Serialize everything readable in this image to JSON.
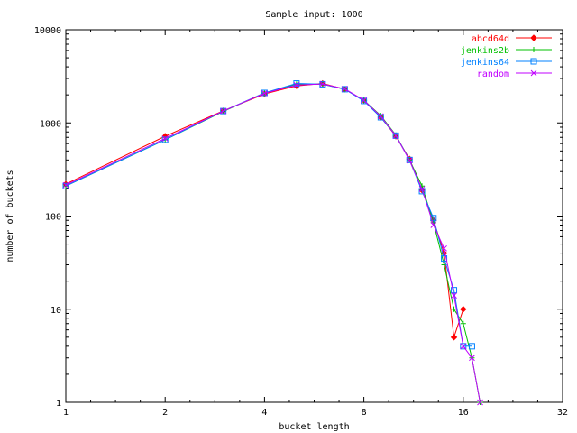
{
  "chart_data": {
    "type": "line",
    "title": "Sample input: 1000",
    "xlabel": "bucket length",
    "ylabel": "number of buckets",
    "xscale": "log2",
    "yscale": "log10",
    "xlim": [
      1,
      32
    ],
    "ylim": [
      1,
      10000
    ],
    "xticks": [
      1,
      2,
      4,
      8,
      16,
      32
    ],
    "xtick_labels": [
      "1",
      "2",
      "4",
      "8",
      "16",
      "32"
    ],
    "yticks": [
      1,
      10,
      100,
      1000,
      10000
    ],
    "ytick_labels": [
      "1",
      "10",
      "100",
      "1000",
      "10000"
    ],
    "grid": false,
    "legend_position": "top-right",
    "series": [
      {
        "name": "abcd64d",
        "color": "#ff0000",
        "marker": "diamond",
        "x": [
          1,
          2,
          3,
          4,
          5,
          6,
          7,
          8,
          9,
          10,
          11,
          12,
          13,
          14,
          15,
          16
        ],
        "y": [
          220,
          720,
          1350,
          2050,
          2500,
          2650,
          2300,
          1750,
          1150,
          720,
          410,
          190,
          90,
          40,
          5,
          10
        ]
      },
      {
        "name": "jenkins2b",
        "color": "#00c000",
        "marker": "plus",
        "x": [
          1,
          2,
          3,
          4,
          5,
          6,
          7,
          8,
          9,
          10,
          11,
          12,
          13,
          14,
          15,
          16,
          17,
          18
        ],
        "y": [
          210,
          660,
          1330,
          2100,
          2600,
          2600,
          2300,
          1750,
          1200,
          740,
          400,
          210,
          85,
          30,
          10,
          7,
          3,
          1
        ]
      },
      {
        "name": "jenkins64",
        "color": "#0080ff",
        "marker": "square",
        "x": [
          1,
          2,
          3,
          4,
          5,
          6,
          7,
          8,
          9,
          10,
          11,
          12,
          13,
          14,
          15,
          16,
          17
        ],
        "y": [
          210,
          660,
          1340,
          2100,
          2650,
          2600,
          2300,
          1720,
          1150,
          730,
          400,
          185,
          95,
          35,
          16,
          4,
          4
        ]
      },
      {
        "name": "random",
        "color": "#c000ff",
        "marker": "cross",
        "x": [
          1,
          2,
          3,
          4,
          5,
          6,
          7,
          8,
          9,
          10,
          11,
          12,
          13,
          14,
          15,
          16,
          17,
          18
        ],
        "y": [
          215,
          680,
          1340,
          2080,
          2550,
          2620,
          2320,
          1750,
          1180,
          730,
          395,
          195,
          80,
          45,
          14,
          4,
          3,
          1
        ]
      }
    ]
  }
}
